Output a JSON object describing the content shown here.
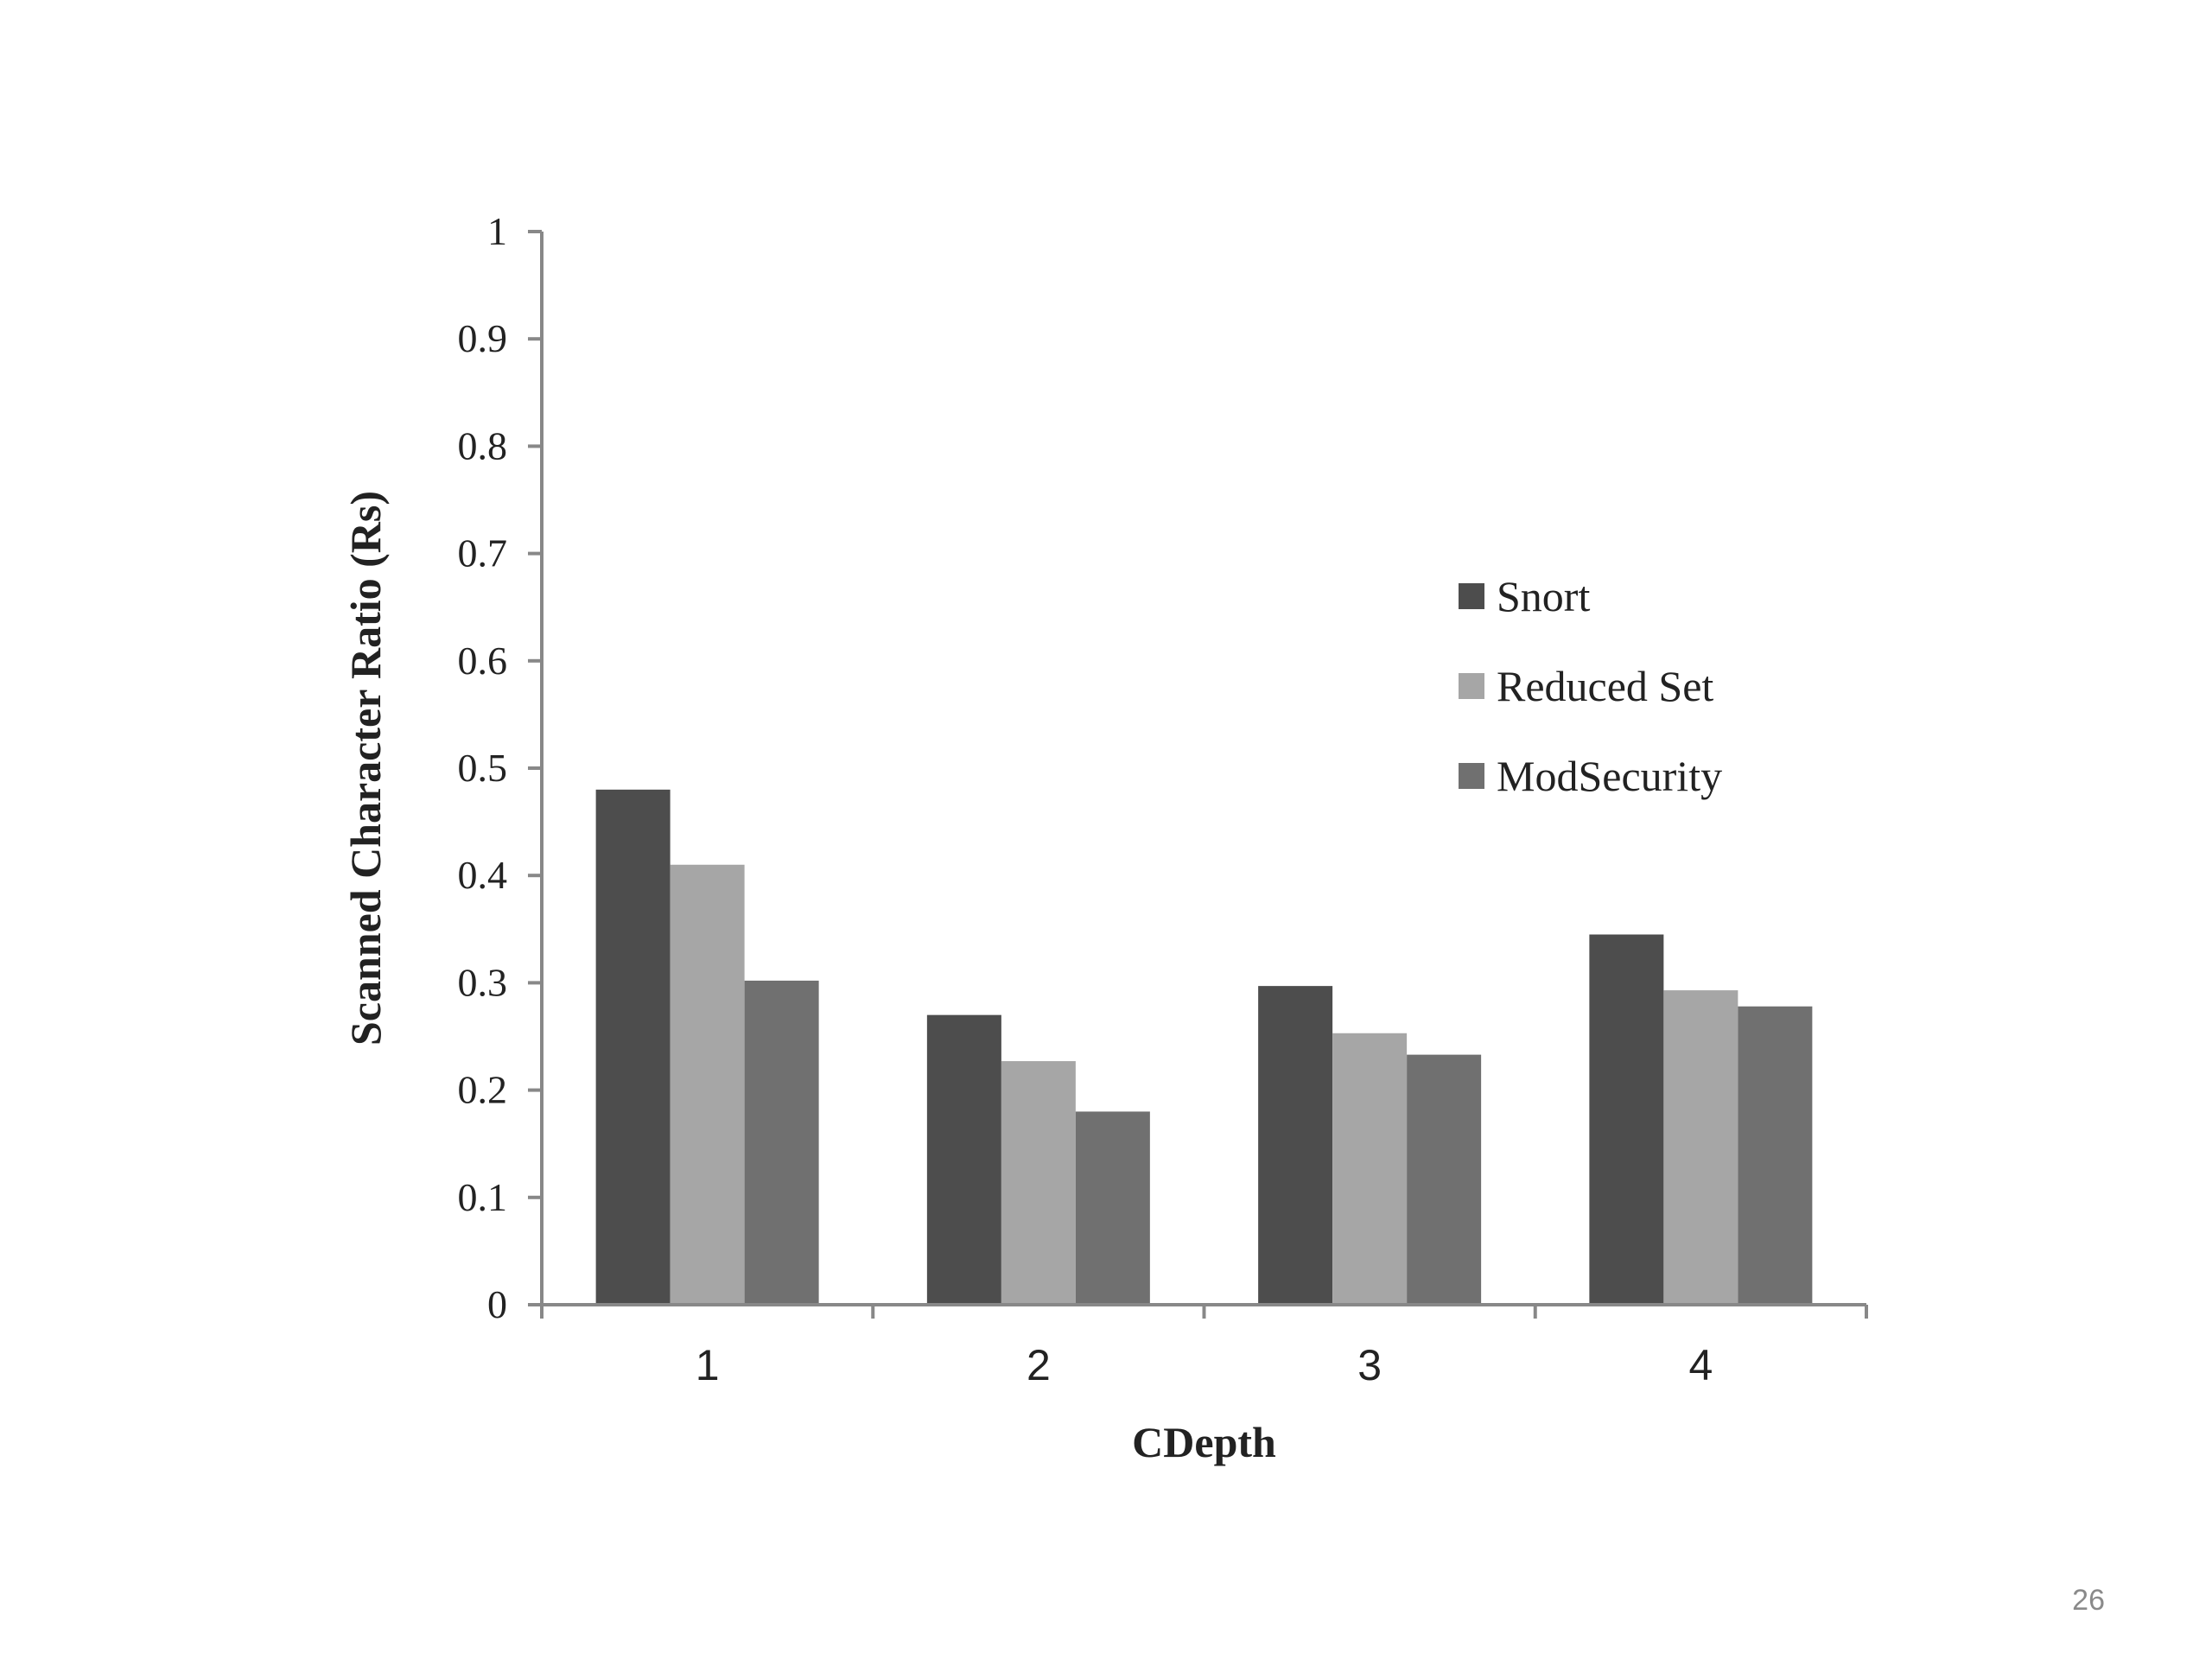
{
  "chart_data": {
    "type": "bar",
    "categories": [
      "1",
      "2",
      "3",
      "4"
    ],
    "series": [
      {
        "name": "Snort",
        "values": [
          0.48,
          0.27,
          0.297,
          0.345
        ],
        "color": "#4d4d4d"
      },
      {
        "name": "Reduced Set",
        "values": [
          0.41,
          0.227,
          0.253,
          0.293
        ],
        "color": "#a6a6a6"
      },
      {
        "name": "ModSecurity",
        "values": [
          0.302,
          0.18,
          0.233,
          0.278
        ],
        "color": "#707070"
      }
    ],
    "xlabel": "CDepth",
    "ylabel": "Scanned Character Ratio (Rs)",
    "ylim": [
      0,
      1
    ],
    "yticks": [
      "0",
      "0.1",
      "0.2",
      "0.3",
      "0.4",
      "0.5",
      "0.6",
      "0.7",
      "0.8",
      "0.9",
      "1"
    ],
    "grid": false,
    "legend": "right"
  },
  "page_number": "26"
}
